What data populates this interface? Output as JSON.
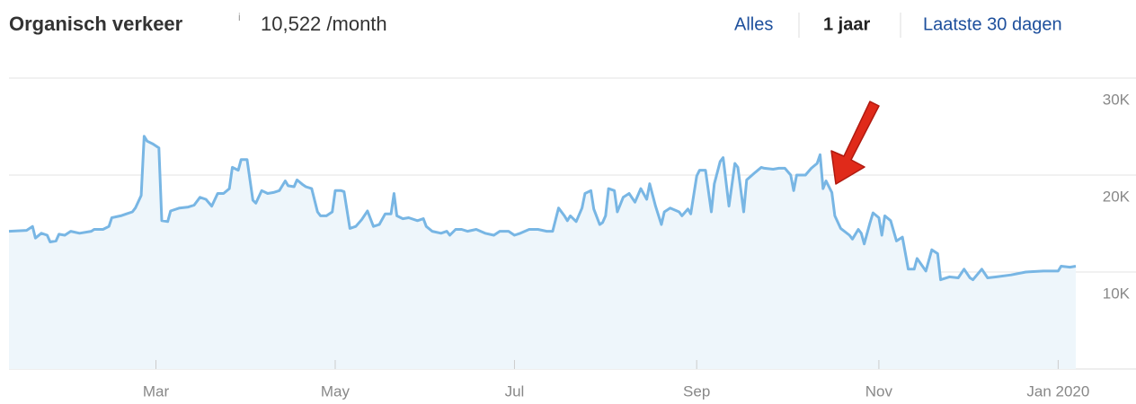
{
  "header": {
    "title": "Organisch verkeer",
    "info": "i",
    "traffic": "10,522 /month",
    "ranges": [
      "Alles",
      "1 jaar",
      "Laatste 30 dagen"
    ]
  },
  "chart_data": {
    "type": "area",
    "color": "#78b6e4",
    "fill": "#eef6fb",
    "grid": true,
    "xlim": [
      0,
      363
    ],
    "ylim": [
      0,
      30000
    ],
    "xticks": [
      {
        "value": 50,
        "label": "Mar"
      },
      {
        "value": 111,
        "label": "May"
      },
      {
        "value": 172,
        "label": "Jul"
      },
      {
        "value": 234,
        "label": "Sep"
      },
      {
        "value": 296,
        "label": "Nov"
      },
      {
        "value": 357,
        "label": "Jan 2020"
      }
    ],
    "yticks": [
      {
        "value": 10000,
        "label": "10K"
      },
      {
        "value": 20000,
        "label": "20K"
      },
      {
        "value": 30000,
        "label": "30K"
      }
    ],
    "x": [
      0,
      6,
      8,
      9,
      11,
      13,
      14,
      16,
      17,
      19,
      21,
      24,
      28,
      29,
      32,
      34,
      35,
      38,
      40,
      42,
      43,
      45,
      46,
      47,
      49,
      51,
      52,
      54,
      55,
      58,
      61,
      63,
      65,
      67,
      69,
      71,
      73,
      75,
      76,
      78,
      79,
      81,
      83,
      84,
      86,
      88,
      90,
      92,
      94,
      95,
      97,
      98,
      100,
      101,
      103,
      105,
      106,
      108,
      110,
      111,
      113,
      114,
      116,
      118,
      120,
      122,
      124,
      126,
      128,
      130,
      131,
      132,
      134,
      136,
      139,
      141,
      142,
      144,
      147,
      149,
      150,
      152,
      154,
      156,
      159,
      162,
      165,
      167,
      170,
      172,
      174,
      177,
      180,
      183,
      185,
      187,
      189,
      190,
      191,
      193,
      195,
      196,
      198,
      199,
      201,
      202,
      203,
      204,
      206,
      207,
      209,
      211,
      213,
      215,
      217,
      218,
      220,
      222,
      223,
      225,
      228,
      229,
      231,
      232,
      234,
      235,
      237,
      239,
      240,
      242,
      243,
      245,
      247,
      248,
      250,
      251,
      254,
      256,
      257,
      260,
      262,
      264,
      266,
      267,
      268,
      271,
      273,
      275,
      276,
      277,
      278,
      280,
      281,
      283,
      286,
      287,
      289,
      290,
      291,
      293,
      294,
      296,
      297,
      298,
      300,
      302,
      304,
      306,
      308,
      309,
      312,
      314,
      316,
      317,
      320,
      323,
      325,
      327,
      328,
      331,
      333,
      336,
      341,
      346,
      352,
      357,
      358,
      361,
      363
    ],
    "values": [
      14200,
      14300,
      14700,
      13500,
      14000,
      13800,
      13100,
      13200,
      13900,
      13800,
      14200,
      14000,
      14200,
      14400,
      14400,
      14700,
      15600,
      15800,
      16000,
      16200,
      16600,
      17900,
      24000,
      23500,
      23200,
      22800,
      15300,
      15200,
      16300,
      16600,
      16700,
      16900,
      17700,
      17500,
      16800,
      18100,
      18100,
      18600,
      20800,
      20500,
      21600,
      21600,
      17400,
      17100,
      18400,
      18100,
      18200,
      18400,
      19400,
      18900,
      18800,
      19500,
      19000,
      18800,
      18600,
      16200,
      15800,
      15800,
      16200,
      18400,
      18400,
      18300,
      14500,
      14700,
      15400,
      16300,
      14700,
      14900,
      16000,
      16000,
      18100,
      15800,
      15500,
      15600,
      15300,
      15500,
      14700,
      14200,
      14000,
      14200,
      13800,
      14400,
      14400,
      14200,
      14400,
      14000,
      13800,
      14200,
      14200,
      13800,
      14000,
      14400,
      14400,
      14200,
      14200,
      16600,
      15800,
      15300,
      15800,
      15200,
      16600,
      18100,
      18400,
      16500,
      14900,
      15100,
      15800,
      18600,
      18400,
      16200,
      17700,
      18100,
      17200,
      18600,
      17500,
      19100,
      16800,
      14900,
      16200,
      16600,
      16200,
      15800,
      16500,
      16000,
      19900,
      20500,
      20500,
      16200,
      19100,
      21400,
      21800,
      16800,
      21200,
      20800,
      16200,
      19500,
      20300,
      20800,
      20700,
      20600,
      20700,
      20700,
      20000,
      18400,
      20000,
      20000,
      20700,
      21200,
      22100,
      18600,
      19400,
      18200,
      15800,
      14500,
      13800,
      13400,
      14400,
      14000,
      12900,
      15100,
      16100,
      15600,
      13800,
      15800,
      15300,
      13200,
      13600,
      10300,
      10300,
      11400,
      10100,
      12300,
      11900,
      9200,
      9500,
      9400,
      10300,
      9400,
      9200,
      10300,
      9400,
      9500,
      9700,
      10000,
      10100,
      10100,
      10600,
      10500,
      10600
    ]
  }
}
